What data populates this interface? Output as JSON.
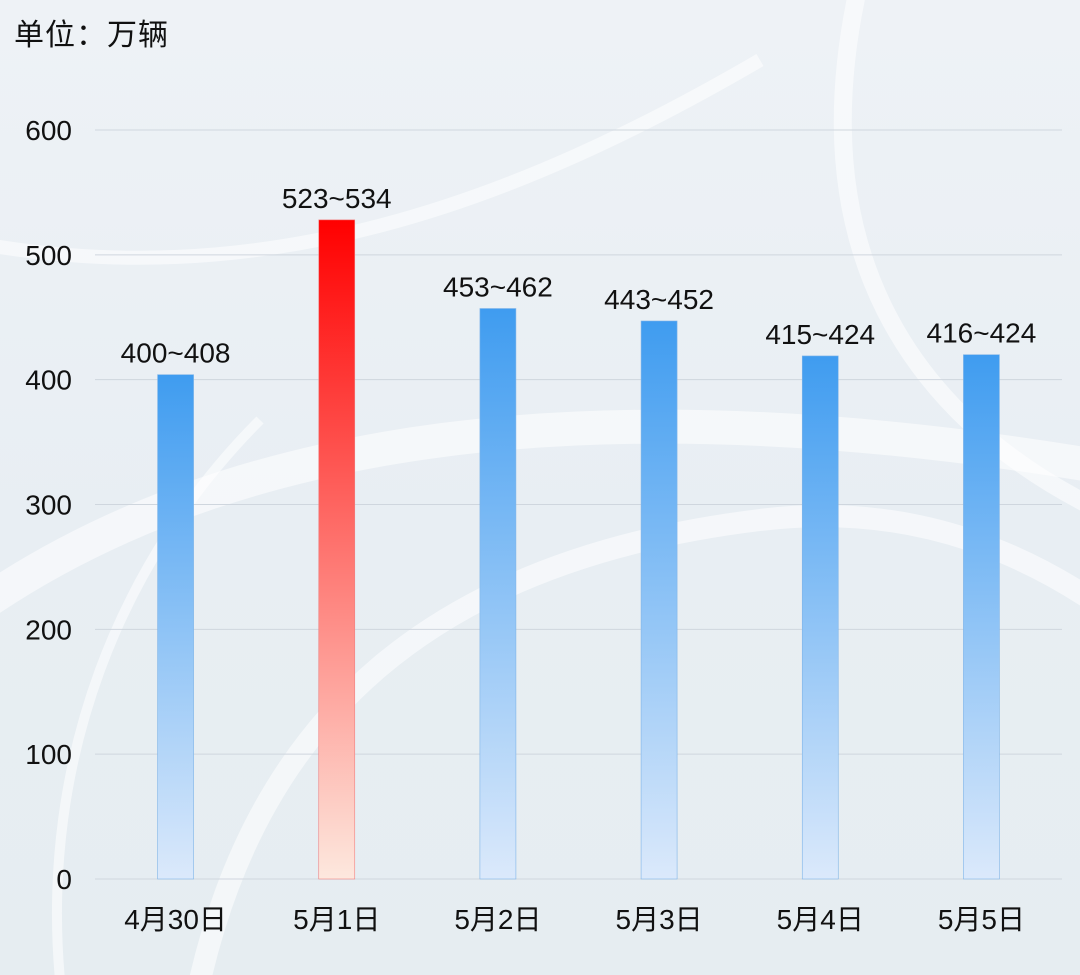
{
  "chart_data": {
    "type": "bar",
    "unit_label": "单位：万辆",
    "categories": [
      "4月30日",
      "5月1日",
      "5月2日",
      "5月3日",
      "5月4日",
      "5月5日"
    ],
    "values": [
      404,
      528,
      457,
      447,
      419,
      420
    ],
    "value_labels": [
      "400~408",
      "523~534",
      "453~462",
      "443~452",
      "415~424",
      "416~424"
    ],
    "highlight_index": 1,
    "ylim": [
      0,
      600
    ],
    "yticks": [
      0,
      100,
      200,
      300,
      400,
      500,
      600
    ],
    "grid": true,
    "legend": "none",
    "colors": {
      "bar_top": "#3f9cf0",
      "bar_bottom": "#dbe9fb",
      "highlight_top": "#ff0000",
      "highlight_bottom": "#fde8de",
      "grid": "#cfd6de",
      "text": "#111111"
    }
  }
}
